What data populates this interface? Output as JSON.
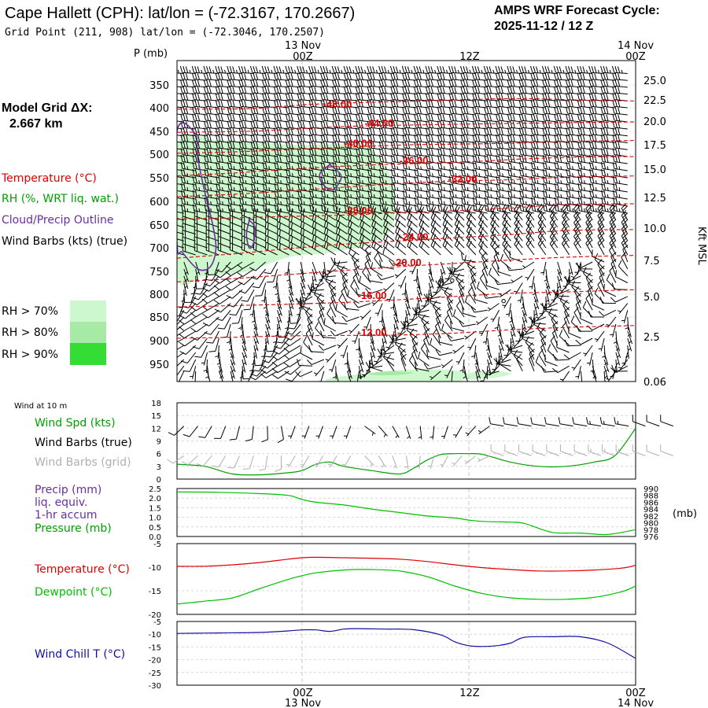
{
  "header": {
    "title": "Cape Hallett (CPH):  lat/lon = (-72.3167, 170.2667)",
    "grid_point": "Grid Point (211, 908) lat/lon = (-72.3046, 170.2507)",
    "cycle_line1": "AMPS WRF Forecast Cycle:",
    "cycle_line2": "2025-11-12 / 12  Z"
  },
  "model_grid": {
    "label": "Model Grid ΔX:",
    "value": "2.667 km"
  },
  "time_axis": {
    "labels": [
      {
        "date": "13 Nov",
        "hour": "00Z",
        "t": 12
      },
      {
        "date": "",
        "hour": "12Z",
        "t": 24
      },
      {
        "date": "14 Nov",
        "hour": "00Z",
        "t": 36
      }
    ],
    "start_hour": 3,
    "end_hour": 36
  },
  "colors": {
    "temperature": "#e00000",
    "rh": "#00a000",
    "cloud": "#6a2e9e",
    "barb": "#000000",
    "barb_grid": "#b0b0b0",
    "precip": "#6a2e9e",
    "pressure": "#00c000",
    "windchill": "#1010a0",
    "rh70": "#cdf7cd",
    "rh80": "#a6eaa6",
    "rh90": "#33dd33"
  },
  "chart_data": [
    {
      "type": "heatmap",
      "id": "cross_section",
      "yaxis_left_label": "P (mb)",
      "yaxis_left_ticks": [
        350,
        400,
        450,
        500,
        550,
        600,
        650,
        700,
        750,
        800,
        850,
        900,
        950
      ],
      "yaxis_right_label": "Kft MSL",
      "yaxis_right_ticks": [
        "25.0",
        "22.5",
        "20.0",
        "17.5",
        "15.0",
        "12.5",
        "10.0",
        "7.5",
        "5.0",
        "2.5",
        "0.06"
      ],
      "legend": [
        {
          "label": "Temperature (°C)",
          "color": "#e00000"
        },
        {
          "label": "RH (%, WRT liq. wat.)",
          "color": "#00a000"
        },
        {
          "label": "Cloud/Precip Outline",
          "color": "#6a2e9e"
        },
        {
          "label": "Wind Barbs (kts) (true)",
          "color": "#000000"
        }
      ],
      "rh_legend": [
        "RH > 70%",
        "RH > 80%",
        "RH > 90%"
      ],
      "temperature_contours": [
        {
          "label": "-48.00",
          "label_t": 13.5,
          "label_p": 400,
          "p": [
            403,
            402,
            396,
            392,
            388,
            385,
            382,
            380,
            384,
            385
          ],
          "t": [
            3,
            8,
            11,
            13,
            17,
            21,
            24,
            28,
            33,
            36
          ]
        },
        {
          "label": "-44.00",
          "label_t": 16.5,
          "label_p": 440,
          "p": [
            452,
            450,
            446,
            441,
            438,
            436,
            434,
            432,
            430
          ],
          "t": [
            3,
            8,
            11,
            14,
            17,
            21,
            25,
            30,
            36
          ]
        },
        {
          "label": "-40.00",
          "label_t": 15.0,
          "label_p": 484,
          "p": [
            498,
            495,
            490,
            485,
            480,
            478,
            476,
            472,
            470
          ],
          "t": [
            3,
            7,
            11,
            15,
            19,
            23,
            27,
            31,
            36
          ]
        },
        {
          "label": "-36.00",
          "label_t": 19.0,
          "label_p": 521,
          "p": [
            546,
            540,
            532,
            524,
            520,
            516,
            510,
            506,
            505
          ],
          "t": [
            3,
            7,
            11,
            16,
            20,
            24,
            28,
            32,
            36
          ]
        },
        {
          "label": "-32.00",
          "label_t": 22.5,
          "label_p": 560,
          "p": [
            590,
            585,
            578,
            570,
            562,
            557,
            554,
            549,
            546
          ],
          "t": [
            3,
            7,
            11,
            15,
            19,
            23,
            27,
            31,
            36
          ]
        },
        {
          "label": "-28.00",
          "label_t": 15.0,
          "label_p": 627,
          "p": [
            638,
            635,
            632,
            629,
            624,
            620,
            614,
            607,
            605
          ],
          "t": [
            3,
            7,
            11,
            15,
            19,
            23,
            27,
            31,
            36
          ]
        },
        {
          "label": "-24.00",
          "label_t": 19.0,
          "label_p": 684,
          "p": [
            722,
            713,
            702,
            692,
            685,
            678,
            671,
            662,
            660
          ],
          "t": [
            3,
            7,
            11,
            15,
            19,
            23,
            27,
            31,
            36
          ]
        },
        {
          "label": "-20.00",
          "label_t": 18.5,
          "label_p": 738,
          "p": [
            773,
            766,
            757,
            748,
            740,
            733,
            726,
            720,
            716
          ],
          "t": [
            3,
            7,
            11,
            15,
            19,
            23,
            27,
            31,
            36
          ]
        },
        {
          "label": "-16.00",
          "label_t": 16.0,
          "label_p": 810,
          "p": [
            828,
            825,
            822,
            818,
            812,
            805,
            798,
            795,
            790
          ],
          "t": [
            3,
            7,
            11,
            15,
            19,
            23,
            27,
            31,
            36
          ]
        },
        {
          "label": "-12.00",
          "label_t": 16.0,
          "label_p": 890,
          "p": [
            895,
            893,
            890,
            889,
            888,
            884,
            877,
            872,
            868
          ],
          "t": [
            3,
            7,
            11,
            15,
            19,
            23,
            27,
            31,
            36
          ]
        }
      ],
      "rh_regions": [
        {
          "level": 70,
          "t": [
            3,
            6,
            9,
            12,
            15,
            17,
            18.5,
            18.5,
            17,
            14,
            11,
            8,
            5,
            3
          ],
          "p": [
            480,
            470,
            475,
            480,
            478,
            490,
            560,
            650,
            690,
            710,
            720,
            750,
            760,
            760
          ]
        },
        {
          "level": 70,
          "t": [
            14,
            17,
            20,
            23,
            24,
            23,
            19,
            16,
            14
          ],
          "p": [
            990,
            975,
            965,
            968,
            985,
            1000,
            1000,
            1000,
            1000
          ]
        },
        {
          "level": 70,
          "t": [
            22,
            24,
            26,
            27,
            26,
            24,
            22
          ],
          "p": [
            990,
            975,
            970,
            978,
            988,
            994,
            994
          ]
        },
        {
          "level": 80,
          "t": [
            17,
            18.5,
            20,
            18.5,
            17
          ],
          "p": [
            975,
            970,
            975,
            982,
            980
          ]
        }
      ],
      "cloud_outlines": [
        {
          "t": [
            3,
            4.3,
            4.5,
            5,
            5.5,
            5.8,
            5.4,
            4.5,
            3.4,
            3
          ],
          "p": [
            450,
            455,
            510,
            580,
            640,
            700,
            740,
            745,
            710,
            690
          ]
        },
        {
          "t": [
            8.2,
            8.6,
            8.5,
            8.2,
            8.0,
            8.2
          ],
          "p": [
            640,
            655,
            690,
            700,
            670,
            640
          ]
        },
        {
          "t": [
            14.0,
            14.8,
            14.5,
            14.0,
            13.4,
            13.3,
            14.0
          ],
          "p": [
            522,
            545,
            568,
            575,
            560,
            540,
            522
          ]
        }
      ],
      "calm_points": [
        {
          "t": 22.0,
          "p": 770
        },
        {
          "t": 22.8,
          "p": 770
        },
        {
          "t": 26.5,
          "p": 815
        }
      ],
      "wind_profile": "westerly 25-35 kt aloft above 650 mb; light and variable below 750 mb"
    },
    {
      "type": "line",
      "id": "wind10m",
      "title": "Wind at 10 m",
      "legend": [
        {
          "label": "Wind Spd (kts)",
          "color": "#00a000"
        },
        {
          "label": "Wind Barbs (true)",
          "color": "#000000"
        },
        {
          "label": "Wind Barbs (grid)",
          "color": "#b0b0b0"
        }
      ],
      "yaxis_ticks": [
        0,
        3,
        6,
        9,
        12,
        15,
        18
      ],
      "ylim": [
        0,
        18
      ],
      "x": [
        3,
        5,
        7,
        9,
        11,
        12,
        13,
        14,
        15,
        17,
        19,
        20,
        21,
        22,
        23,
        24,
        25,
        27,
        29,
        31,
        33,
        34.5,
        36
      ],
      "speed": [
        3.5,
        3.0,
        1.2,
        1.0,
        1.5,
        2.0,
        3.5,
        4.0,
        3.0,
        2.0,
        1.2,
        2.5,
        4.5,
        5.8,
        6.0,
        6.0,
        5.8,
        4.0,
        3.0,
        3.0,
        4.0,
        5.5,
        12.0
      ],
      "barb_true": "westerly ~12 kt row near 12-15 kt level; 14 Nov 00Z stronger westerlies",
      "barb_grid": "grid-relative barbs near 6 kt level"
    },
    {
      "type": "line",
      "id": "precip_pressure",
      "legend": [
        {
          "label": "Precip (mm)",
          "color": "#6a2e9e"
        },
        {
          "label": "liq. equiv.",
          "color": "#6a2e9e"
        },
        {
          "label": "1-hr accum",
          "color": "#6a2e9e"
        },
        {
          "label": "Pressure (mb)",
          "color": "#00a000"
        }
      ],
      "yaxis_left_ticks": [
        "2.5",
        "2.0",
        "1.5",
        "1.0",
        "0.5",
        "0.0"
      ],
      "yaxis_right_ticks": [
        "990",
        "988",
        "986",
        "984",
        "982",
        "980",
        "978",
        "976"
      ],
      "yaxis_right_label": "(mb)",
      "ylim_precip": [
        0,
        2.5
      ],
      "ylim_pressure": [
        976,
        990
      ],
      "precip": [],
      "x": [
        3,
        6,
        9,
        11,
        12,
        13,
        15,
        17,
        19,
        21,
        23,
        24,
        25,
        27,
        28,
        30,
        32,
        34,
        36
      ],
      "pressure": [
        989.0,
        988.9,
        988.5,
        988.0,
        986.8,
        986.0,
        985.2,
        984.0,
        983.0,
        982.0,
        981.4,
        980.8,
        980.4,
        980.2,
        979.8,
        977.2,
        977.0,
        976.6,
        978.0
      ]
    },
    {
      "type": "line",
      "id": "temp_dewpoint",
      "legend": [
        {
          "label": "Temperature (°C)",
          "color": "#e00000"
        },
        {
          "label": "Dewpoint (°C)",
          "color": "#00c000"
        }
      ],
      "yaxis_ticks": [
        "-5",
        "-10",
        "-15",
        "-20"
      ],
      "ylim": [
        -20,
        -5
      ],
      "x": [
        3,
        5,
        7,
        9,
        11,
        12,
        13,
        15,
        17,
        19,
        21,
        23,
        25,
        27,
        29,
        31,
        33,
        35,
        36
      ],
      "temperature": [
        -9.8,
        -9.8,
        -9.5,
        -9.0,
        -8.3,
        -8.0,
        -7.9,
        -8.0,
        -8.1,
        -8.3,
        -8.8,
        -9.5,
        -10.1,
        -10.5,
        -10.8,
        -10.8,
        -10.6,
        -10.2,
        -9.6
      ],
      "dewpoint": [
        -17.8,
        -17.2,
        -16.5,
        -14.5,
        -12.6,
        -11.8,
        -11.2,
        -10.6,
        -10.5,
        -10.8,
        -12.0,
        -14.0,
        -15.6,
        -16.5,
        -16.8,
        -16.8,
        -16.4,
        -15.2,
        -14.0
      ]
    },
    {
      "type": "line",
      "id": "windchill",
      "legend": [
        {
          "label": "Wind Chill T (°C)",
          "color": "#1010a0"
        }
      ],
      "yaxis_ticks": [
        "-5",
        "-10",
        "-15",
        "-20",
        "-25",
        "-30"
      ],
      "ylim": [
        -30,
        -5
      ],
      "x": [
        3,
        6,
        9,
        11,
        12,
        13,
        14,
        15,
        16,
        18,
        20,
        22,
        23,
        24,
        25,
        26,
        27,
        28,
        30,
        32,
        34,
        36
      ],
      "windchill": [
        -9.7,
        -9.5,
        -9.3,
        -8.7,
        -8.3,
        -8.3,
        -8.9,
        -8.0,
        -7.8,
        -8.0,
        -8.2,
        -10.3,
        -13.0,
        -14.5,
        -14.8,
        -14.5,
        -13.5,
        -11.2,
        -11.0,
        -11.0,
        -13.5,
        -19.5
      ]
    }
  ]
}
